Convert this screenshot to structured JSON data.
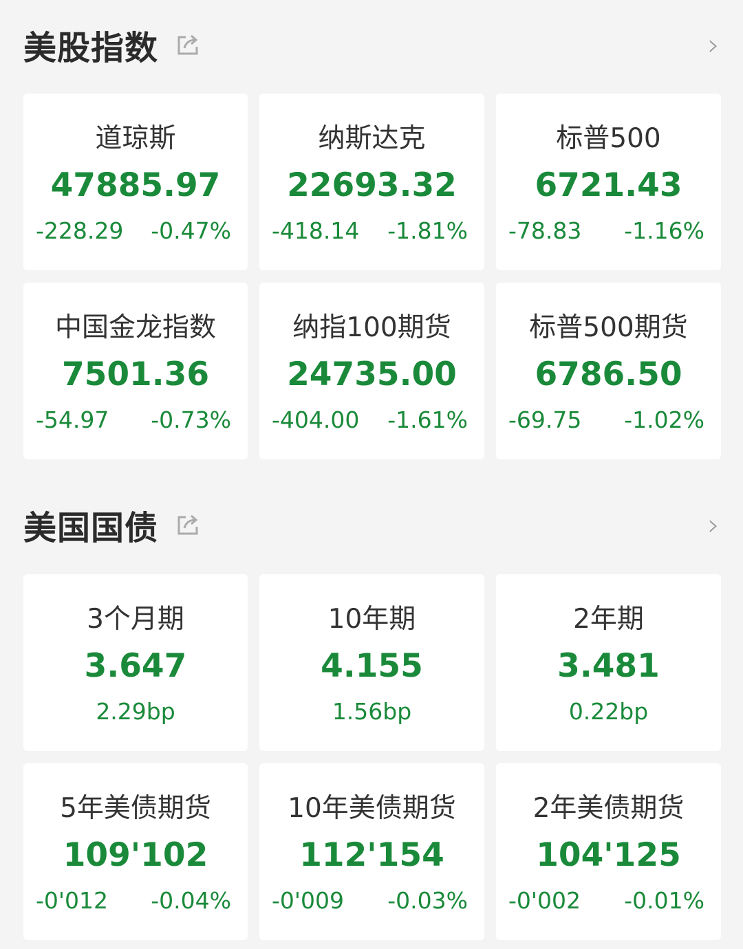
{
  "colors": {
    "down": "#1a8a3a",
    "background": "#f4f4f4",
    "card": "#ffffff"
  },
  "stocks": {
    "title": "美股指数",
    "icons": {
      "share": "share-icon",
      "more": "chevron-right-icon"
    },
    "items": [
      {
        "name": "道琼斯",
        "value": "47885.97",
        "change": "-228.29",
        "pct": "-0.47%"
      },
      {
        "name": "纳斯达克",
        "value": "22693.32",
        "change": "-418.14",
        "pct": "-1.81%"
      },
      {
        "name": "标普500",
        "value": "6721.43",
        "change": "-78.83",
        "pct": "-1.16%"
      },
      {
        "name": "中国金龙指数",
        "value": "7501.36",
        "change": "-54.97",
        "pct": "-0.73%"
      },
      {
        "name": "纳指100期货",
        "value": "24735.00",
        "change": "-404.00",
        "pct": "-1.61%"
      },
      {
        "name": "标普500期货",
        "value": "6786.50",
        "change": "-69.75",
        "pct": "-1.02%"
      }
    ]
  },
  "bonds": {
    "title": "美国国债",
    "icons": {
      "share": "share-icon",
      "more": "chevron-right-icon"
    },
    "yields": [
      {
        "name": "3个月期",
        "value": "3.647",
        "change": "2.29bp"
      },
      {
        "name": "10年期",
        "value": "4.155",
        "change": "1.56bp"
      },
      {
        "name": "2年期",
        "value": "3.481",
        "change": "0.22bp"
      }
    ],
    "futures": [
      {
        "name": "5年美债期货",
        "value": "109'102",
        "change": "-0'012",
        "pct": "-0.04%"
      },
      {
        "name": "10年美债期货",
        "value": "112'154",
        "change": "-0'009",
        "pct": "-0.03%"
      },
      {
        "name": "2年美债期货",
        "value": "104'125",
        "change": "-0'002",
        "pct": "-0.01%"
      }
    ]
  }
}
